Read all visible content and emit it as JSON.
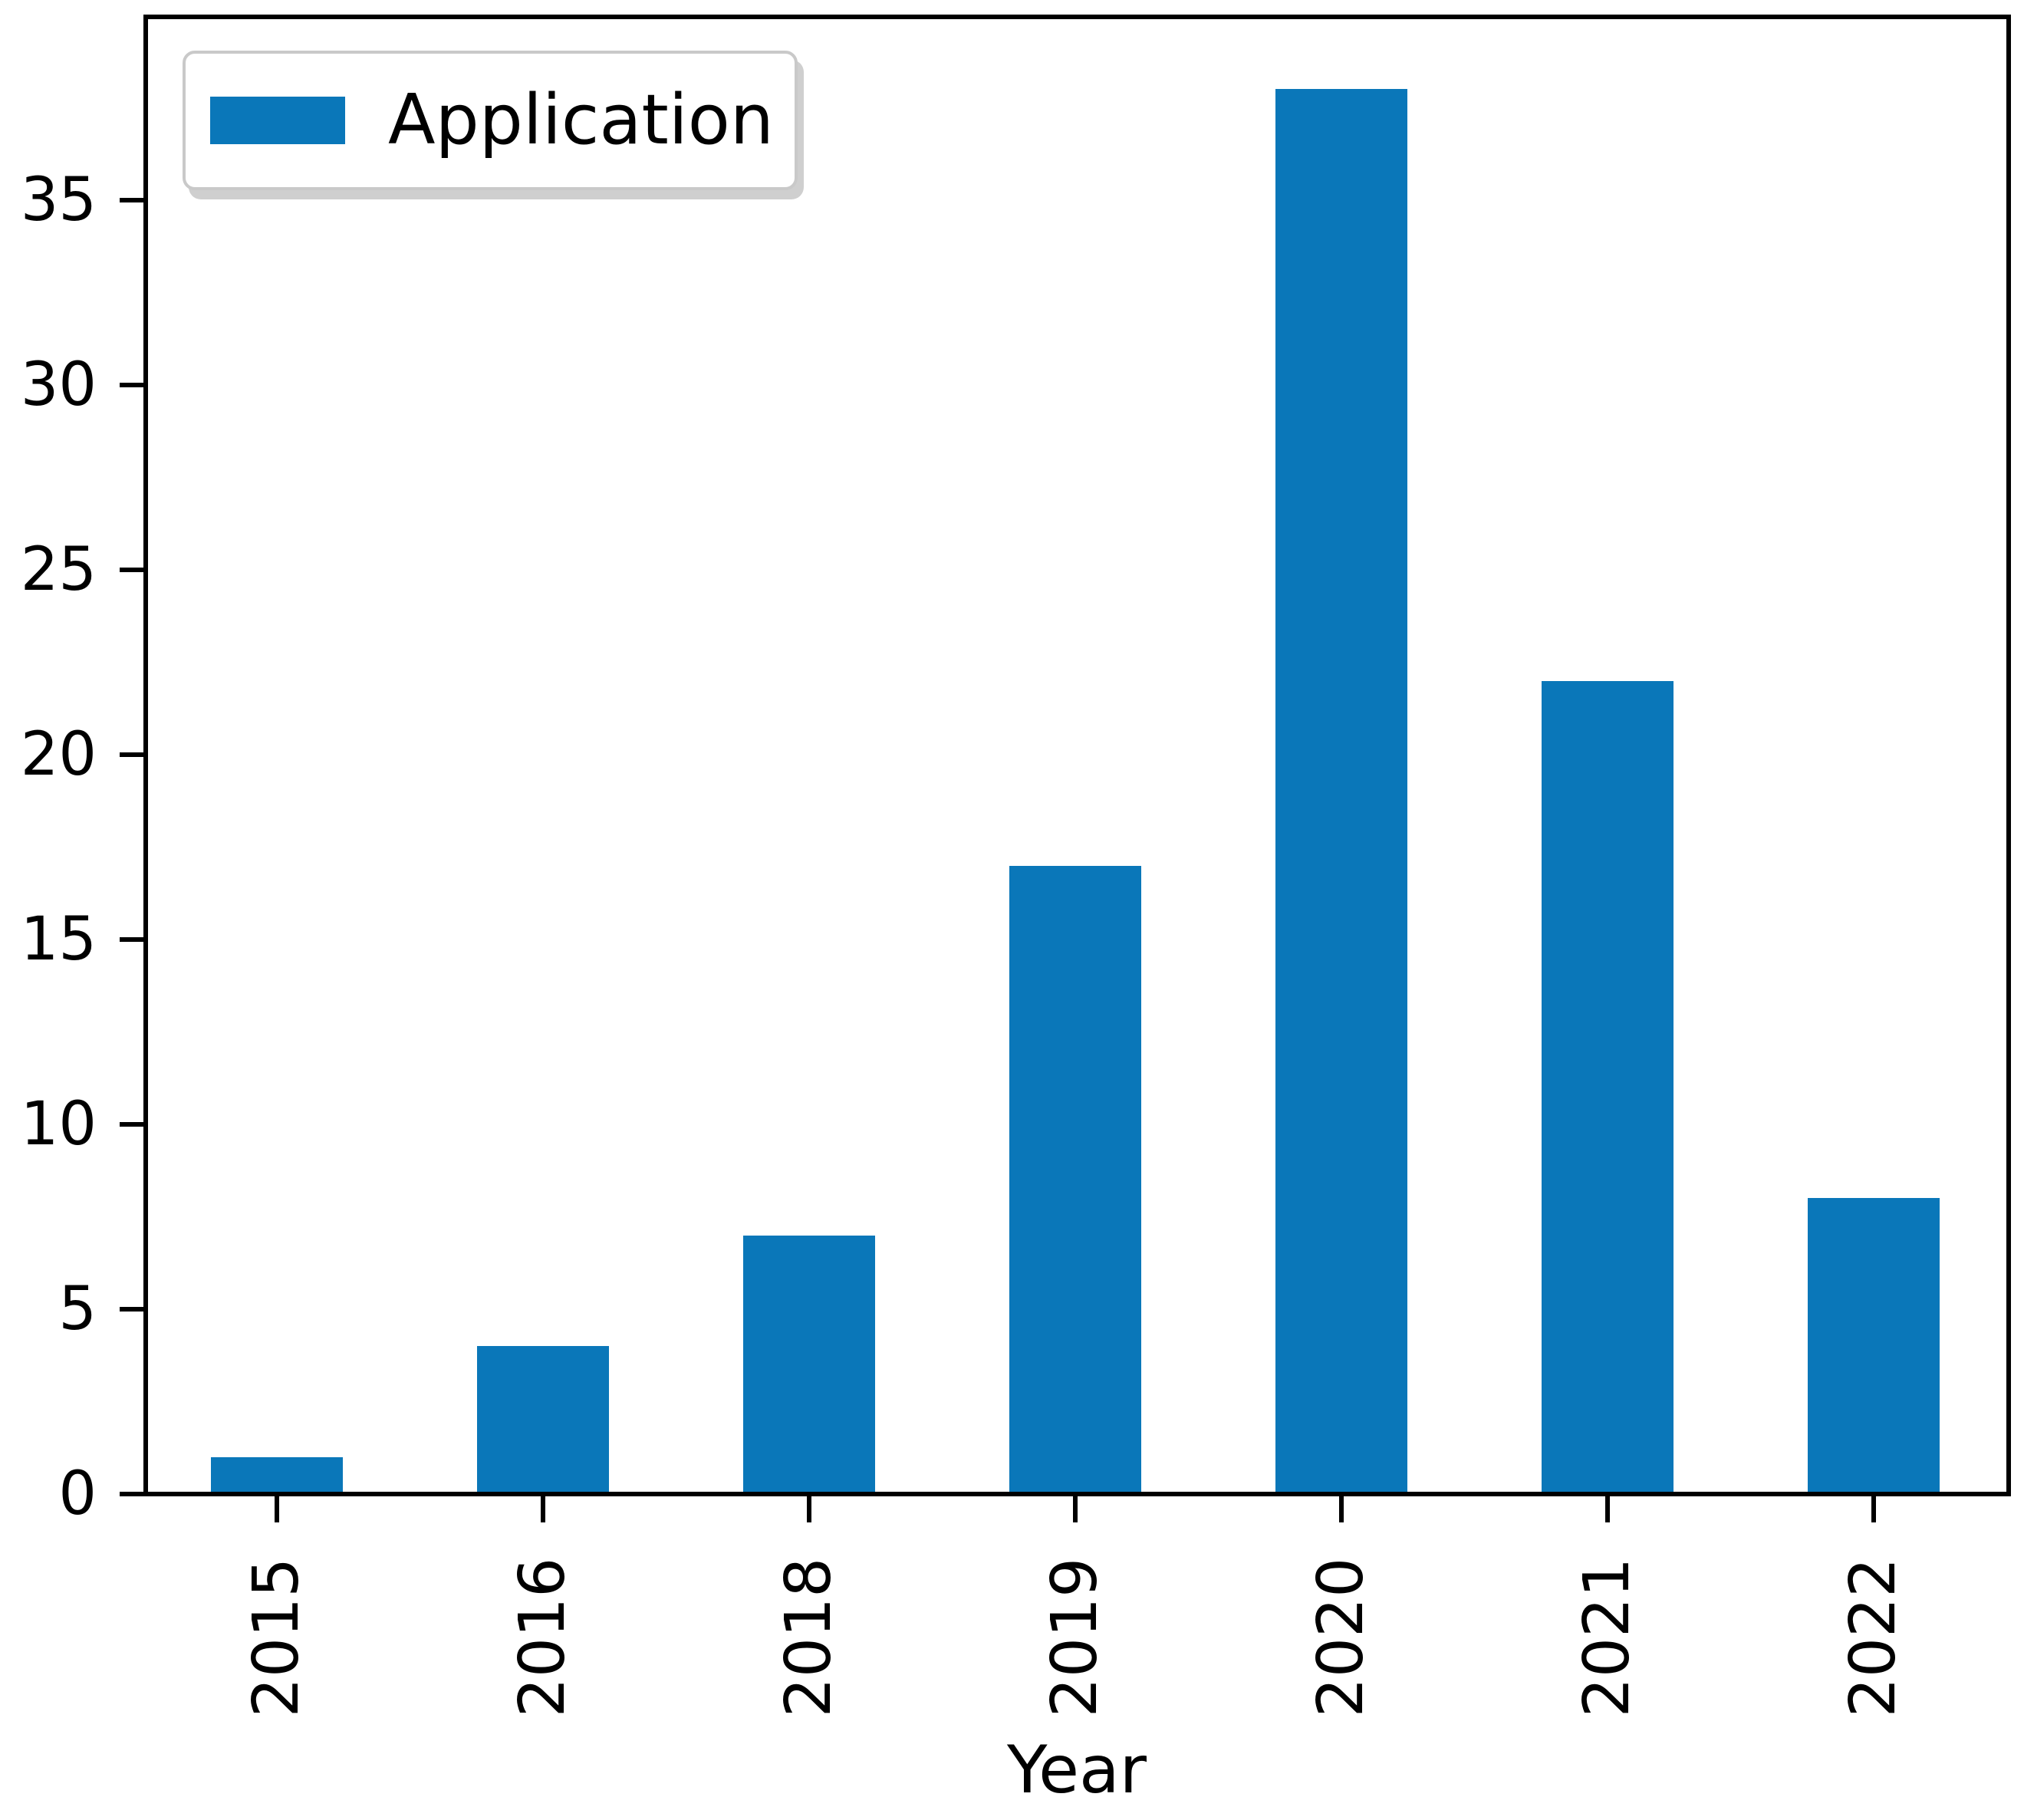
{
  "figure": {
    "background": "#ffffff"
  },
  "chart_data": {
    "type": "bar",
    "title": "",
    "xlabel": "Year",
    "ylabel": "",
    "categories": [
      "2015",
      "2016",
      "2018",
      "2019",
      "2020",
      "2021",
      "2022"
    ],
    "series": [
      {
        "name": "Application",
        "values": [
          1,
          4,
          7,
          17,
          38,
          22,
          8
        ],
        "color": "#0A77B9"
      }
    ],
    "y_ticks": [
      0,
      5,
      10,
      15,
      20,
      25,
      30,
      35
    ],
    "ylim": [
      0,
      40
    ],
    "grid": false,
    "x_tick_rotation": 90,
    "legend_position": "upper-left"
  },
  "legend": {
    "items": [
      {
        "label": "Application",
        "color": "#0A77B9"
      }
    ]
  },
  "colors": {
    "bar": "#0A77B9",
    "axis": "#000000",
    "text": "#000000",
    "legend_border": "#c9c9c9",
    "legend_shadow": "#cfcfcf"
  }
}
